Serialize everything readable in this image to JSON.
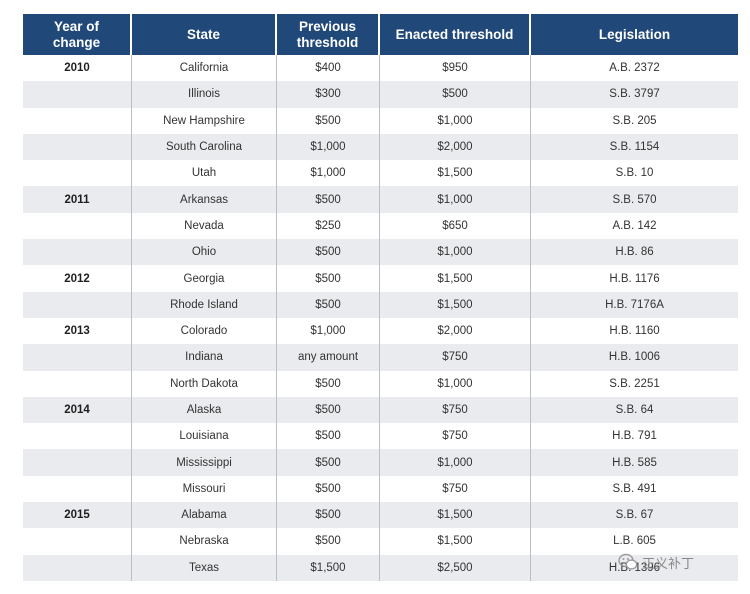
{
  "table": {
    "headers": [
      "Year of\nchange",
      "State",
      "Previous\nthreshold",
      "Enacted threshold",
      "Legislation"
    ],
    "rows": [
      {
        "year": "2010",
        "state": "California",
        "previous": "$400",
        "enacted": "$950",
        "legislation": "A.B. 2372"
      },
      {
        "year": "",
        "state": "Illinois",
        "previous": "$300",
        "enacted": "$500",
        "legislation": "S.B. 3797"
      },
      {
        "year": "",
        "state": "New Hampshire",
        "previous": "$500",
        "enacted": "$1,000",
        "legislation": "S.B. 205"
      },
      {
        "year": "",
        "state": "South Carolina",
        "previous": "$1,000",
        "enacted": "$2,000",
        "legislation": "S.B. 1154"
      },
      {
        "year": "",
        "state": "Utah",
        "previous": "$1,000",
        "enacted": "$1,500",
        "legislation": "S.B. 10"
      },
      {
        "year": "2011",
        "state": "Arkansas",
        "previous": "$500",
        "enacted": "$1,000",
        "legislation": "S.B. 570"
      },
      {
        "year": "",
        "state": "Nevada",
        "previous": "$250",
        "enacted": "$650",
        "legislation": "A.B. 142"
      },
      {
        "year": "",
        "state": "Ohio",
        "previous": "$500",
        "enacted": "$1,000",
        "legislation": "H.B. 86"
      },
      {
        "year": "2012",
        "state": "Georgia",
        "previous": "$500",
        "enacted": "$1,500",
        "legislation": "H.B. 1176"
      },
      {
        "year": "",
        "state": "Rhode Island",
        "previous": "$500",
        "enacted": "$1,500",
        "legislation": "H.B. 7176A"
      },
      {
        "year": "2013",
        "state": "Colorado",
        "previous": "$1,000",
        "enacted": "$2,000",
        "legislation": "H.B. 1160"
      },
      {
        "year": "",
        "state": "Indiana",
        "previous": "any amount",
        "enacted": "$750",
        "legislation": "H.B. 1006"
      },
      {
        "year": "",
        "state": "North Dakota",
        "previous": "$500",
        "enacted": "$1,000",
        "legislation": "S.B. 2251"
      },
      {
        "year": "2014",
        "state": "Alaska",
        "previous": "$500",
        "enacted": "$750",
        "legislation": "S.B. 64"
      },
      {
        "year": "",
        "state": "Louisiana",
        "previous": "$500",
        "enacted": "$750",
        "legislation": "H.B. 791"
      },
      {
        "year": "",
        "state": "Mississippi",
        "previous": "$500",
        "enacted": "$1,000",
        "legislation": "H.B. 585"
      },
      {
        "year": "",
        "state": "Missouri",
        "previous": "$500",
        "enacted": "$750",
        "legislation": "S.B. 491"
      },
      {
        "year": "2015",
        "state": "Alabama",
        "previous": "$500",
        "enacted": "$1,500",
        "legislation": "S.B. 67"
      },
      {
        "year": "",
        "state": "Nebraska",
        "previous": "$500",
        "enacted": "$1,500",
        "legislation": "L.B. 605"
      },
      {
        "year": "",
        "state": "Texas",
        "previous": "$1,500",
        "enacted": "$2,500",
        "legislation": "H.B. 1396"
      }
    ]
  },
  "watermark": {
    "text": "正义补丁",
    "icon": "wechat-icon"
  }
}
